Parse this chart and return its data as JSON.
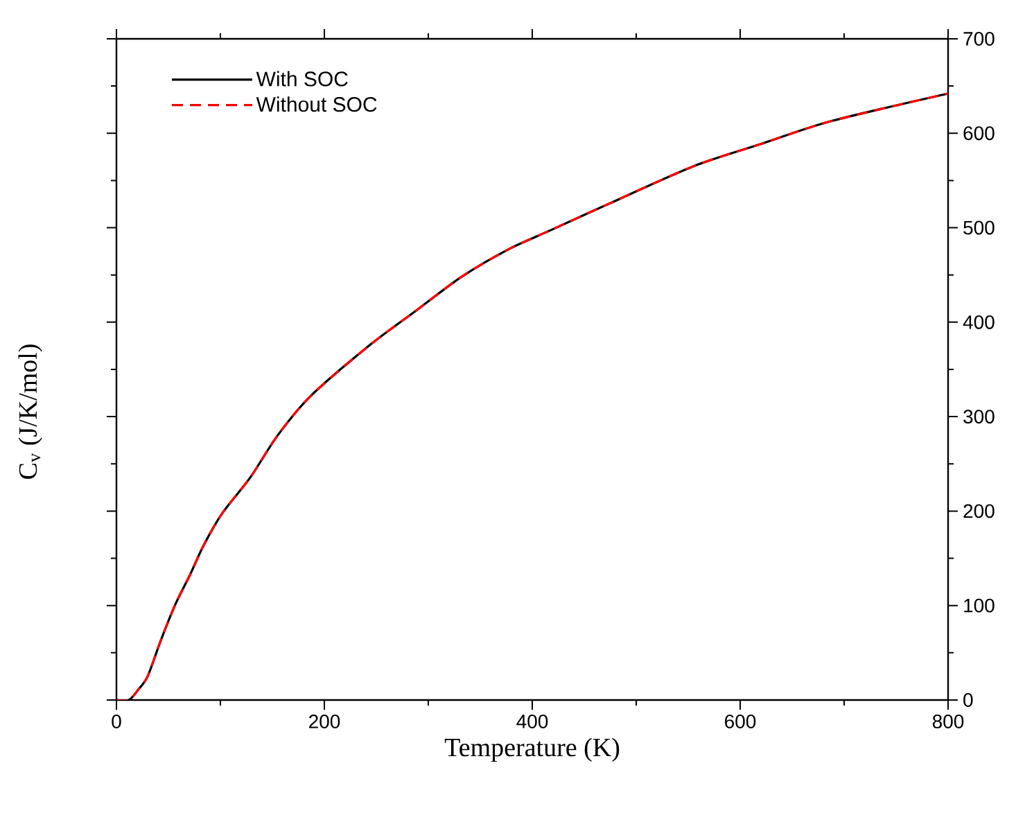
{
  "chart_data": {
    "type": "line",
    "xlabel": "Temperature (K)",
    "ylabel": "C$_{v}$ (J/K/mol)",
    "xlim": [
      0,
      800
    ],
    "ylim": [
      0,
      700
    ],
    "xticks": [
      0,
      200,
      400,
      600,
      800
    ],
    "yticks": [
      0,
      100,
      200,
      300,
      400,
      500,
      600,
      700
    ],
    "x": [
      0,
      12,
      21,
      30,
      43,
      57,
      71,
      84,
      102,
      129,
      155,
      187,
      244,
      288,
      332,
      377,
      421,
      475,
      555,
      621,
      688,
      800
    ],
    "series": [
      {
        "name": "With SOC",
        "color": "#000000",
        "line_style": "solid",
        "values": [
          0,
          0,
          11,
          25,
          64,
          102,
          133,
          164,
          198,
          236,
          280,
          322,
          376,
          412,
          448,
          477,
          499,
          526,
          565,
          589,
          613,
          642
        ]
      },
      {
        "name": "Without SOC",
        "color": "#ff0000",
        "line_style": "dashed",
        "values": [
          0,
          0,
          11,
          25,
          64,
          102,
          133,
          164,
          198,
          236,
          280,
          322,
          376,
          412,
          448,
          477,
          499,
          526,
          565,
          589,
          613,
          642
        ]
      }
    ],
    "legend": "top left",
    "grid": false,
    "marker": "none"
  }
}
